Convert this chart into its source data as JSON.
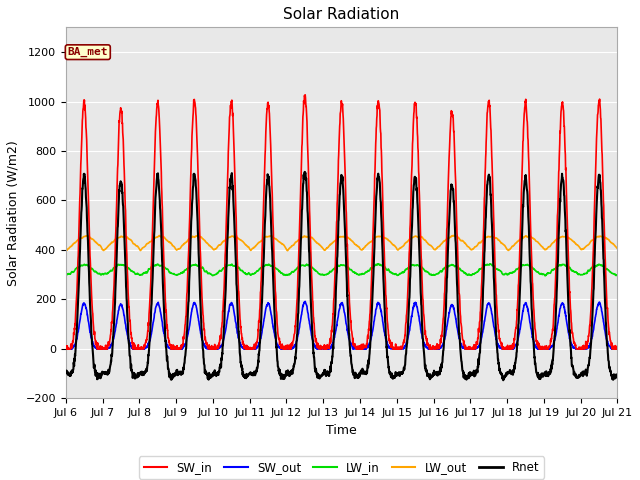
{
  "title": "Solar Radiation",
  "ylabel": "Solar Radiation (W/m2)",
  "xlabel": "Time",
  "ylim": [
    -200,
    1300
  ],
  "xlim_days": [
    6,
    21
  ],
  "yticks": [
    -200,
    0,
    200,
    400,
    600,
    800,
    1000,
    1200
  ],
  "xtick_labels": [
    "Jul 6",
    "Jul 7",
    "Jul 8",
    "Jul 9",
    "Jul 10",
    "Jul 11",
    "Jul 12",
    "Jul 13",
    "Jul 14",
    "Jul 15",
    "Jul 16",
    "Jul 17",
    "Jul 18",
    "Jul 19",
    "Jul 20",
    "Jul 21"
  ],
  "colors": {
    "SW_in": "#ff0000",
    "SW_out": "#0000ff",
    "LW_in": "#00dd00",
    "LW_out": "#ffa500",
    "Rnet": "#000000"
  },
  "linewidths": {
    "SW_in": 1.2,
    "SW_out": 1.2,
    "LW_in": 1.2,
    "LW_out": 1.2,
    "Rnet": 1.5
  },
  "legend_label": "BA_met",
  "legend_label_color": "#8b0000",
  "legend_label_bg": "#ffffcc",
  "plot_bg_color": "#e8e8e8",
  "grid_color": "#ffffff",
  "title_fontsize": 11,
  "axis_fontsize": 9,
  "tick_fontsize": 8,
  "figsize": [
    6.4,
    4.8
  ],
  "dpi": 100
}
